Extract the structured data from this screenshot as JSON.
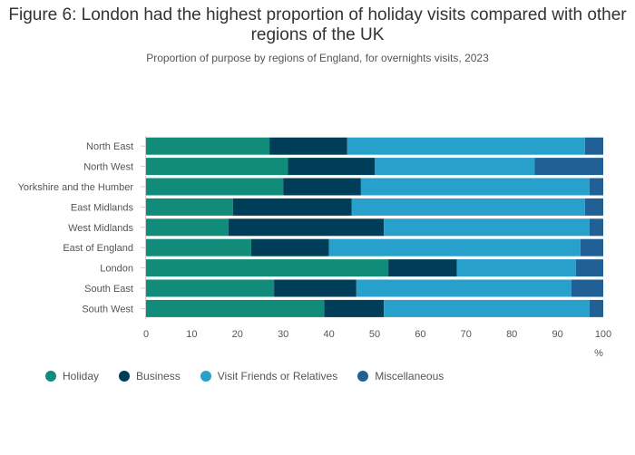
{
  "title": "Figure 6: London had the highest proportion of holiday visits compared with other regions of the UK",
  "subtitle": "Proportion of purpose by regions of England, for overnights visits, 2023",
  "chart_data": {
    "type": "bar",
    "orientation": "horizontal",
    "stacked": true,
    "categories": [
      "North East",
      "North West",
      "Yorkshire and the Humber",
      "East Midlands",
      "West Midlands",
      "East of England",
      "London",
      "South East",
      "South West"
    ],
    "series": [
      {
        "name": "Holiday",
        "color": "#118c7b",
        "values": [
          27,
          31,
          30,
          19,
          18,
          23,
          53,
          28,
          39
        ]
      },
      {
        "name": "Business",
        "color": "#003d59",
        "values": [
          17,
          19,
          17,
          26,
          34,
          17,
          15,
          18,
          13
        ]
      },
      {
        "name": "Visit Friends or Relatives",
        "color": "#27a0cc",
        "values": [
          52,
          35,
          50,
          51,
          45,
          55,
          26,
          47,
          45
        ]
      },
      {
        "name": "Miscellaneous",
        "color": "#206095",
        "values": [
          4,
          15,
          3,
          4,
          3,
          5,
          6,
          7,
          3
        ]
      }
    ],
    "xlim": [
      0,
      100
    ],
    "xticks": [
      0,
      10,
      20,
      30,
      40,
      50,
      60,
      70,
      80,
      90,
      100
    ],
    "xlabel": "%",
    "legend_position": "bottom-left"
  }
}
